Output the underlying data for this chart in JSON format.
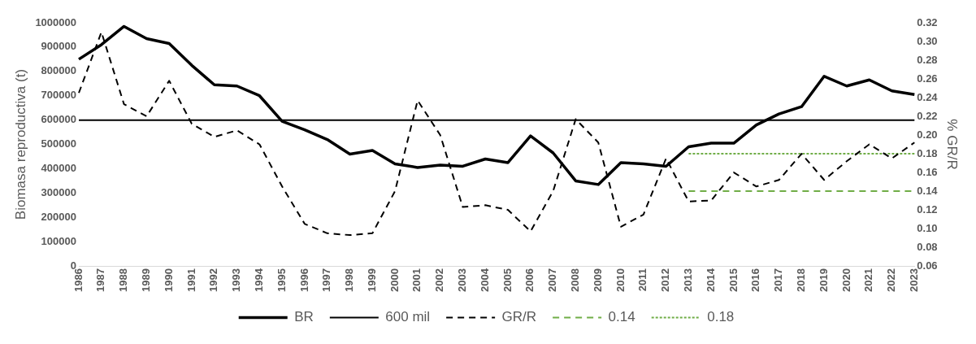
{
  "chart_data": {
    "type": "line",
    "ylabel": "Biomasa reproductiva (t)",
    "y2label": "% GR/R",
    "categories": [
      "1986",
      "1987",
      "1988",
      "1989",
      "1990",
      "1991",
      "1992",
      "1993",
      "1994",
      "1995",
      "1996",
      "1997",
      "1998",
      "1999",
      "2000",
      "2001",
      "2002",
      "2003",
      "2004",
      "2005",
      "2006",
      "2007",
      "2008",
      "2009",
      "2010",
      "2011",
      "2012",
      "2013",
      "2014",
      "2015",
      "2016",
      "2017",
      "2018",
      "2019",
      "2020",
      "2021",
      "2022",
      "2023"
    ],
    "series": [
      {
        "name": "BR",
        "color": "#000000",
        "line_style": "solid",
        "values": [
          850000,
          910000,
          985000,
          935000,
          915000,
          825000,
          745000,
          740000,
          700000,
          595000,
          560000,
          520000,
          460000,
          475000,
          420000,
          405000,
          415000,
          410000,
          440000,
          425000,
          535000,
          465000,
          350000,
          335000,
          425000,
          420000,
          410000,
          490000,
          505000,
          505000,
          580000,
          625000,
          655000,
          780000,
          740000,
          765000,
          720000,
          705000
        ]
      },
      {
        "name": "600 mil",
        "color": "#000000",
        "line_style": "solid",
        "values": [
          600000,
          600000,
          600000,
          600000,
          600000,
          600000,
          600000,
          600000,
          600000,
          600000,
          600000,
          600000,
          600000,
          600000,
          600000,
          600000,
          600000,
          600000,
          600000,
          600000,
          600000,
          600000,
          600000,
          600000,
          600000,
          600000,
          600000,
          600000,
          600000,
          600000,
          600000,
          600000,
          600000,
          600000,
          600000,
          600000,
          600000,
          600000
        ]
      },
      {
        "name": "GR/R",
        "color": "#000000",
        "line_style": "dashed",
        "axis": "y2",
        "values": [
          0.245,
          0.31,
          0.233,
          0.22,
          0.258,
          0.212,
          0.198,
          0.205,
          0.19,
          0.145,
          0.105,
          0.095,
          0.093,
          0.095,
          0.14,
          0.237,
          0.2,
          0.123,
          0.125,
          0.12,
          0.097,
          0.14,
          0.217,
          0.192,
          0.102,
          0.115,
          0.175,
          0.129,
          0.13,
          0.16,
          0.145,
          0.152,
          0.18,
          0.152,
          0.172,
          0.19,
          0.175,
          0.192
        ]
      },
      {
        "name": "0.14",
        "color": "#70ad47",
        "line_style": "dashed",
        "axis": "y2",
        "values": [
          null,
          null,
          null,
          null,
          null,
          null,
          null,
          null,
          null,
          null,
          null,
          null,
          null,
          null,
          null,
          null,
          null,
          null,
          null,
          null,
          null,
          null,
          null,
          null,
          null,
          null,
          null,
          0.14,
          0.14,
          0.14,
          0.14,
          0.14,
          0.14,
          0.14,
          0.14,
          0.14,
          0.14,
          0.14
        ]
      },
      {
        "name": "0.18",
        "color": "#70ad47",
        "line_style": "dotted",
        "axis": "y2",
        "values": [
          null,
          null,
          null,
          null,
          null,
          null,
          null,
          null,
          null,
          null,
          null,
          null,
          null,
          null,
          null,
          null,
          null,
          null,
          null,
          null,
          null,
          null,
          null,
          null,
          null,
          null,
          null,
          0.18,
          0.18,
          0.18,
          0.18,
          0.18,
          0.18,
          0.18,
          0.18,
          0.18,
          0.18,
          0.18
        ]
      }
    ],
    "ylim": [
      0,
      1000000
    ],
    "yticks": [
      0,
      100000,
      200000,
      300000,
      400000,
      500000,
      600000,
      700000,
      800000,
      900000,
      1000000
    ],
    "y2lim": [
      0.06,
      0.32
    ],
    "y2ticks": [
      {
        "value": 0.06,
        "label": "0.06"
      },
      {
        "value": 0.08,
        "label": "0.08"
      },
      {
        "value": 0.1,
        "label": "0.10"
      },
      {
        "value": 0.12,
        "label": "0.12"
      },
      {
        "value": 0.14,
        "label": "0.14"
      },
      {
        "value": 0.16,
        "label": "0.16"
      },
      {
        "value": 0.18,
        "label": "0.18"
      },
      {
        "value": 0.2,
        "label": "0.20"
      },
      {
        "value": 0.22,
        "label": "0.22"
      },
      {
        "value": 0.24,
        "label": "0.24"
      },
      {
        "value": 0.26,
        "label": "0.26"
      },
      {
        "value": 0.28,
        "label": "0.28"
      },
      {
        "value": 0.3,
        "label": "0.30"
      },
      {
        "value": 0.32,
        "label": "0.32"
      }
    ],
    "grid": false,
    "legend": "bottom"
  }
}
